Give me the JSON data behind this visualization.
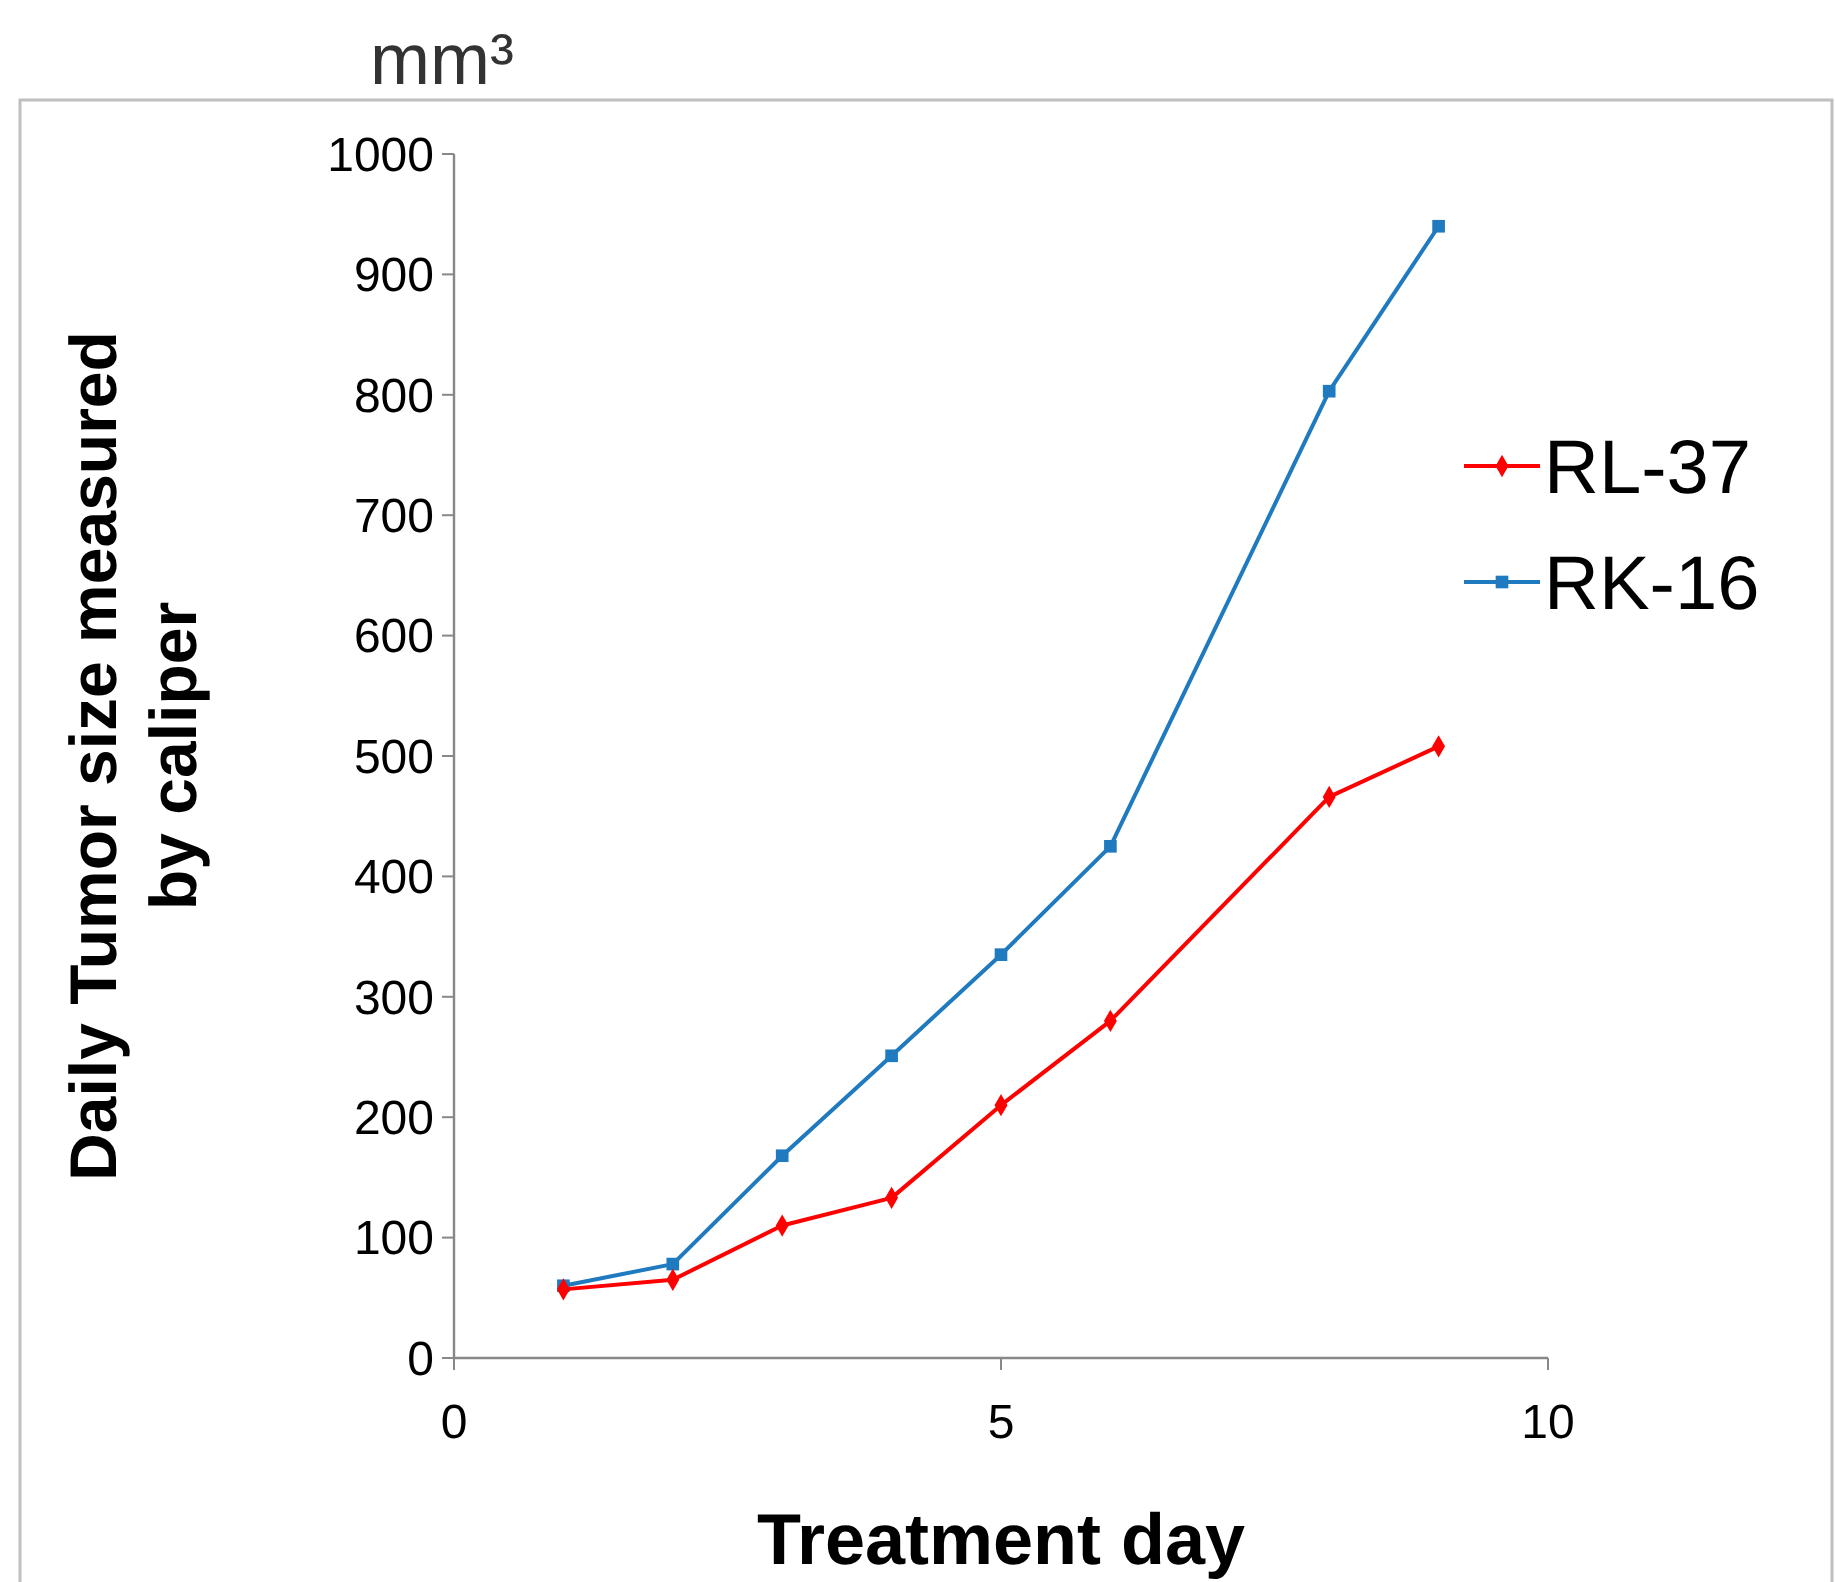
{
  "chart_data": {
    "type": "line",
    "xlabel": "Treatment day",
    "ylabel": "Daily Tumor size measured by caliper",
    "annotations": [
      "mm³"
    ],
    "x": [
      1,
      2,
      3,
      4,
      5,
      6,
      8,
      9
    ],
    "series": [
      {
        "name": "RL-37",
        "color": "#ff0000",
        "marker": "diamond",
        "values": [
          57,
          65,
          110,
          133,
          210,
          280,
          466,
          508
        ]
      },
      {
        "name": "RK-16",
        "color": "#1f7ac0",
        "marker": "square",
        "values": [
          60,
          78,
          168,
          251,
          335,
          425,
          803,
          940
        ]
      }
    ],
    "xlim": [
      0,
      10
    ],
    "xticks": [
      0,
      5,
      10
    ],
    "ylim": [
      0,
      1000
    ],
    "yticks": [
      0,
      100,
      200,
      300,
      400,
      500,
      600,
      700,
      800,
      900,
      1000
    ],
    "grid": false,
    "legend": "right"
  }
}
